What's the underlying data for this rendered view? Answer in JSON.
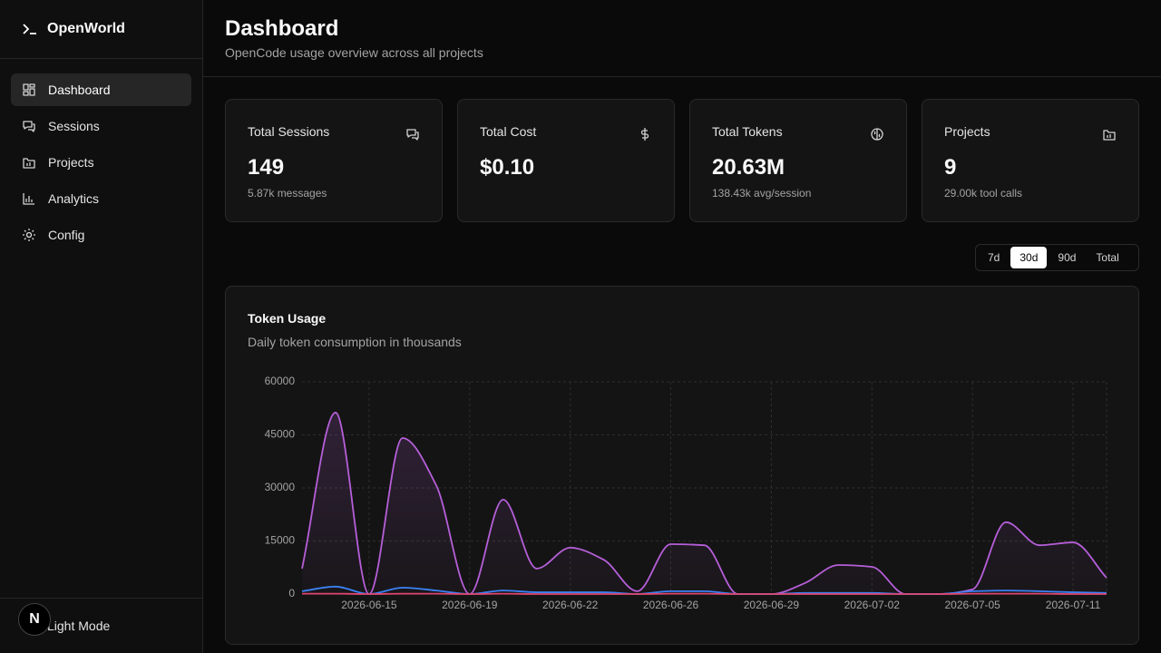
{
  "sidebar": {
    "brand": "OpenWorld",
    "nav": [
      "Dashboard",
      "Sessions",
      "Projects",
      "Analytics",
      "Config"
    ],
    "active_nav": 0,
    "footer": "Light Mode",
    "avatar": "N"
  },
  "header": {
    "title": "Dashboard",
    "subtitle": "OpenCode usage overview across all projects"
  },
  "cards": [
    {
      "label": "Total Sessions",
      "value": "149",
      "note": "5.87k messages"
    },
    {
      "label": "Total Cost",
      "value": "$0.10"
    },
    {
      "label": "Total Tokens",
      "value": "20.63M",
      "note": "138.43k avg/session"
    },
    {
      "label": "Projects",
      "value": "9",
      "note": "29.00k tool calls"
    }
  ],
  "ranges": [
    "7d",
    "30d",
    "90d",
    "Total"
  ],
  "active_range": 1,
  "chart_data": {
    "type": "area",
    "title": "Token Usage",
    "subtitle": "Daily token consumption in thousands",
    "categories": [
      null,
      null,
      "2026-06-15",
      null,
      null,
      "2026-06-19",
      null,
      null,
      "2026-06-22",
      null,
      null,
      "2026-06-26",
      null,
      null,
      "2026-06-29",
      null,
      null,
      "2026-07-02",
      null,
      null,
      "2026-07-05",
      null,
      null,
      "2026-07-11",
      null
    ],
    "series": [
      {
        "color": "#b65fd9",
        "fill": true,
        "values": [
          7200,
          51300,
          0,
          44100,
          30800,
          0,
          26700,
          7200,
          13100,
          9700,
          800,
          14100,
          13800,
          0,
          0,
          3100,
          8200,
          7700,
          0,
          0,
          1300,
          20300,
          13800,
          14600,
          4600
        ]
      },
      {
        "color": "#3b82f6",
        "fill": false,
        "values": [
          800,
          2100,
          0,
          1800,
          1000,
          0,
          1000,
          500,
          500,
          500,
          0,
          800,
          800,
          0,
          0,
          300,
          300,
          300,
          0,
          0,
          800,
          1000,
          800,
          500,
          300
        ]
      },
      {
        "color": "#e0466e",
        "fill": false,
        "values": [
          100,
          100,
          0,
          100,
          100,
          0,
          100,
          0,
          0,
          0,
          0,
          100,
          100,
          0,
          0,
          0,
          0,
          0,
          0,
          0,
          100,
          100,
          100,
          0,
          0
        ]
      }
    ],
    "ylim": [
      0,
      60000
    ],
    "yticks": [
      0,
      15000,
      30000,
      45000,
      60000
    ],
    "grid": true
  }
}
